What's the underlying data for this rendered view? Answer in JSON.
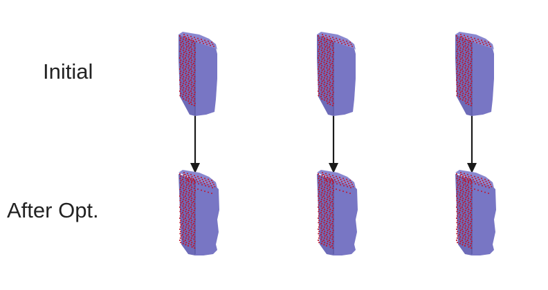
{
  "labels": {
    "initial": "Initial",
    "after": "After Opt."
  },
  "colors": {
    "mesh_body": "#7876c4",
    "mesh_side": "#6d6bb8",
    "mesh_top": "#8a88cf",
    "mesh_shadow": "#5d5ba6",
    "points": "#c0142a",
    "arrow": "#1a1a1a"
  },
  "columns": 3,
  "icons": {
    "mesh": "voxel-mesh",
    "arrow": "down-arrow"
  }
}
